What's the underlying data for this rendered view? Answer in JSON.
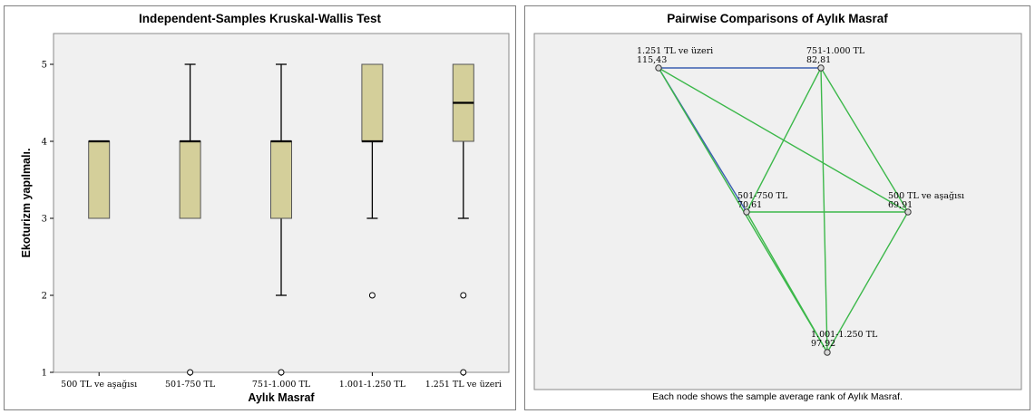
{
  "chart_data": [
    {
      "type": "boxplot",
      "title": "Independent-Samples Kruskal-Wallis Test",
      "xlabel": "Aylık Masraf",
      "ylabel": "Ekoturizm yapılmalı.",
      "ylim": [
        1,
        5.4
      ],
      "yticks": [
        1,
        2,
        3,
        4,
        5
      ],
      "grid": false,
      "box_color": "#d4cf9a",
      "categories": [
        "500 TL ve aşağısı",
        "501-750 TL",
        "751-1.000 TL",
        "1.001-1.250 TL",
        "1.251 TL ve üzeri"
      ],
      "boxes": [
        {
          "whisker_low": 3,
          "q1": 3,
          "median": 4,
          "q3": 4,
          "whisker_high": 4,
          "outliers": []
        },
        {
          "whisker_low": 3,
          "q1": 3,
          "median": 4,
          "q3": 4,
          "whisker_high": 5,
          "outliers": [
            1
          ]
        },
        {
          "whisker_low": 2,
          "q1": 3,
          "median": 4,
          "q3": 4,
          "whisker_high": 5,
          "outliers": [
            1
          ]
        },
        {
          "whisker_low": 3,
          "q1": 4,
          "median": 4,
          "q3": 5,
          "whisker_high": 5,
          "outliers": [
            2
          ]
        },
        {
          "whisker_low": 3,
          "q1": 4,
          "median": 4.5,
          "q3": 5,
          "whisker_high": 5,
          "outliers": [
            2,
            1
          ]
        }
      ]
    },
    {
      "type": "network",
      "title": "Pairwise Comparisons of Aylık Masraf",
      "footnote": "Each node shows the sample average rank of Aylık Masraf.",
      "colors": {
        "significant": "#3a5fb0",
        "not_significant": "#3cb84a"
      },
      "nodes": [
        {
          "id": "n1",
          "label": "1.251 TL ve üzeri",
          "rank": "115,43"
        },
        {
          "id": "n2",
          "label": "751-1.000 TL",
          "rank": "82,81"
        },
        {
          "id": "n3",
          "label": "501-750 TL",
          "rank": "70,61"
        },
        {
          "id": "n4",
          "label": "500 TL ve aşağısı",
          "rank": "69,91"
        },
        {
          "id": "n5",
          "label": "1.001-1.250 TL",
          "rank": "97,92"
        }
      ],
      "edges": [
        {
          "from": "n1",
          "to": "n2",
          "significant": true
        },
        {
          "from": "n1",
          "to": "n3",
          "significant": true
        },
        {
          "from": "n1",
          "to": "n4",
          "significant": false
        },
        {
          "from": "n1",
          "to": "n5",
          "significant": false
        },
        {
          "from": "n2",
          "to": "n3",
          "significant": false
        },
        {
          "from": "n2",
          "to": "n4",
          "significant": false
        },
        {
          "from": "n2",
          "to": "n5",
          "significant": false
        },
        {
          "from": "n3",
          "to": "n4",
          "significant": false
        },
        {
          "from": "n3",
          "to": "n5",
          "significant": false
        },
        {
          "from": "n4",
          "to": "n5",
          "significant": false
        }
      ]
    }
  ]
}
